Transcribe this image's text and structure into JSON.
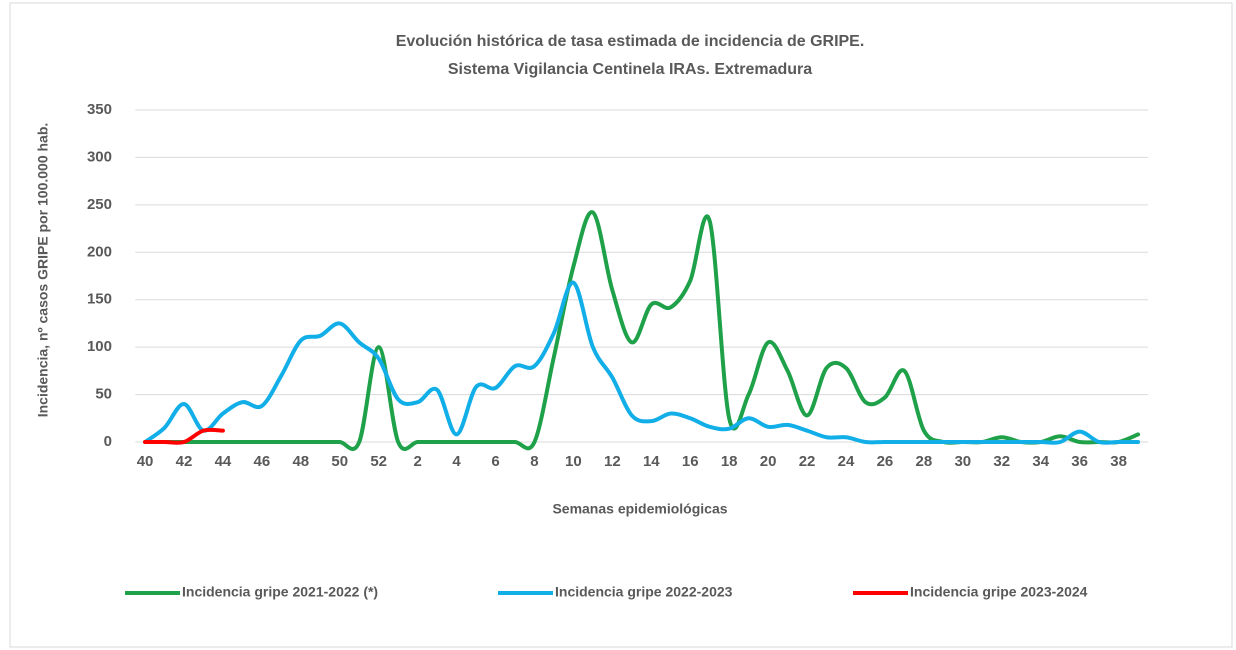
{
  "chart_data": {
    "type": "line",
    "title": "Evolución histórica de tasa estimada de  incidencia de GRIPE.",
    "subtitle": "Sistema Vigilancia Centinela IRAs. Extremadura",
    "x_label": "Semanas epidemiológicas",
    "y_label": "Incidencia, nº casos GRIPE  por 100.000 hab.",
    "categories": [
      "40",
      null,
      "42",
      null,
      "44",
      null,
      "46",
      null,
      "48",
      null,
      "50",
      null,
      "52",
      null,
      "2",
      null,
      "4",
      null,
      "6",
      null,
      "8",
      null,
      "10",
      null,
      "12",
      null,
      "14",
      null,
      "16",
      null,
      "18",
      null,
      "20",
      null,
      "22",
      null,
      "24",
      null,
      "26",
      null,
      "28",
      null,
      "30",
      null,
      "32",
      null,
      "34",
      null,
      "36",
      null,
      "38",
      null
    ],
    "series": [
      {
        "name": "Incidencia gripe 2021-2022 (*)",
        "color": "#1fa14a",
        "values": [
          0,
          0,
          0,
          0,
          0,
          0,
          0,
          0,
          0,
          0,
          0,
          0,
          100,
          0,
          0,
          0,
          0,
          0,
          0,
          0,
          0,
          90,
          185,
          242,
          160,
          105,
          145,
          142,
          170,
          233,
          25,
          50,
          105,
          75,
          28,
          78,
          78,
          42,
          47,
          75,
          12,
          0,
          0,
          0,
          5,
          0,
          0,
          6,
          0,
          0,
          0,
          8
        ]
      },
      {
        "name": "Incidencia gripe 2022-2023",
        "color": "#11aee8",
        "values": [
          0,
          15,
          40,
          12,
          30,
          42,
          38,
          70,
          107,
          112,
          125,
          105,
          88,
          45,
          42,
          55,
          8,
          58,
          57,
          80,
          80,
          115,
          168,
          100,
          68,
          28,
          22,
          30,
          25,
          16,
          14,
          25,
          16,
          18,
          12,
          5,
          5,
          0,
          0,
          0,
          0,
          0,
          0,
          0,
          0,
          0,
          0,
          0,
          11,
          0,
          0,
          0
        ]
      },
      {
        "name": "Incidencia gripe 2023-2024",
        "color": "#ff0000",
        "values": [
          0,
          0,
          0,
          12,
          12,
          null,
          null,
          null,
          null,
          null,
          null,
          null,
          null,
          null,
          null,
          null,
          null,
          null,
          null,
          null,
          null,
          null,
          null,
          null,
          null,
          null,
          null,
          null,
          null,
          null,
          null,
          null,
          null,
          null,
          null,
          null,
          null,
          null,
          null,
          null,
          null,
          null,
          null,
          null,
          null,
          null,
          null,
          null,
          null,
          null,
          null,
          null
        ]
      }
    ],
    "ylim": [
      0,
      350
    ],
    "yticks": [
      0,
      50,
      100,
      150,
      200,
      250,
      300,
      350
    ],
    "grid": true
  }
}
